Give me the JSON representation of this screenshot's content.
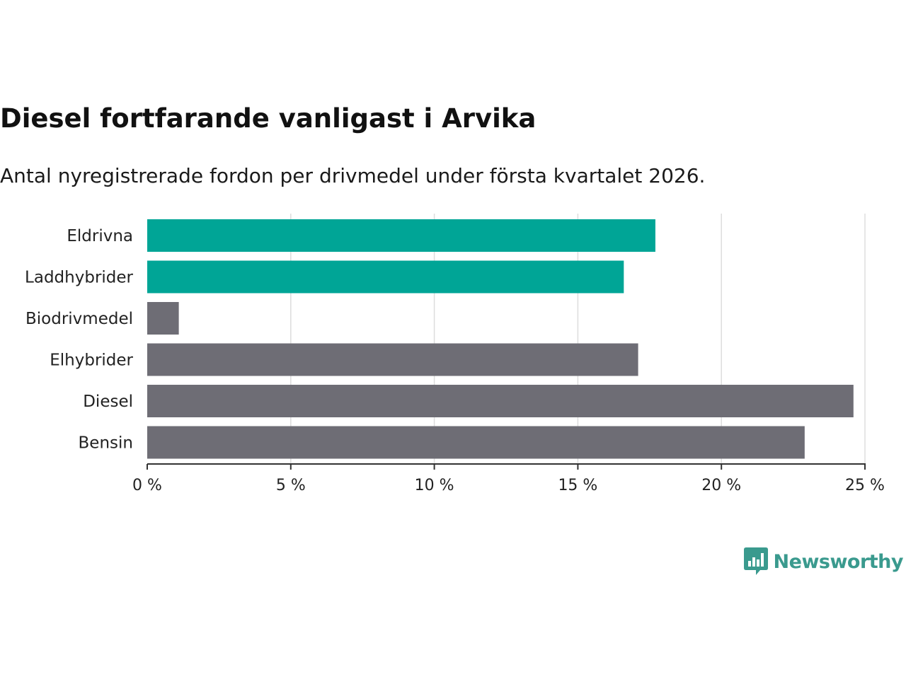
{
  "chart_data": {
    "type": "bar",
    "orientation": "horizontal",
    "title": "Diesel fortfarande vanligast i Arvika",
    "subtitle": "Antal nyregistrerade fordon per drivmedel under första kvartalet 2026.",
    "categories": [
      "Eldrivna",
      "Laddhybrider",
      "Biodrivmedel",
      "Elhybrider",
      "Diesel",
      "Bensin"
    ],
    "values": [
      17.7,
      16.6,
      1.1,
      17.1,
      24.6,
      22.9
    ],
    "highlight": [
      true,
      true,
      false,
      false,
      false,
      false
    ],
    "xlim": [
      0,
      25
    ],
    "xticks": [
      0,
      5,
      10,
      15,
      20,
      25
    ],
    "xtick_labels": [
      "0 %",
      "5 %",
      "10 %",
      "15 %",
      "20 %",
      "25 %"
    ],
    "xlabel": "",
    "ylabel": "",
    "grid": "vertical"
  },
  "colors": {
    "highlight": "#00a596",
    "default": "#6e6d75",
    "grid": "#dddddd",
    "axis": "#333333",
    "brand": "#3a9a8e"
  },
  "brand": {
    "name": "Newsworthy",
    "icon": "bar-chart-speech-bubble-icon"
  }
}
